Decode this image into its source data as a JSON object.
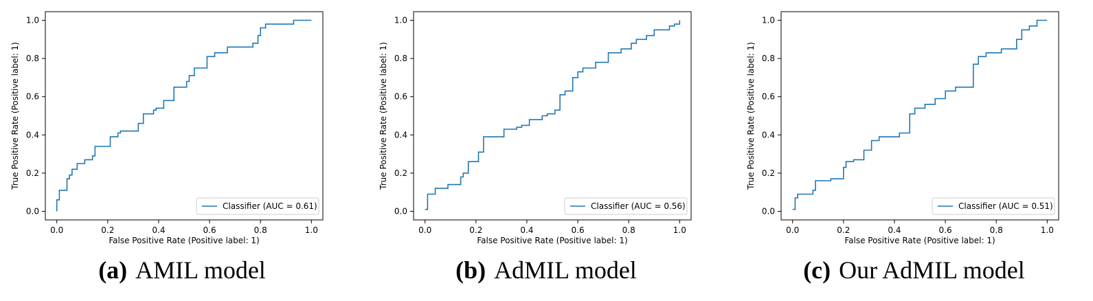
{
  "chart_data": [
    {
      "type": "line",
      "subtitle": "AMIL model",
      "panel_tag": "(a)",
      "xlabel": "False Positive Rate (Positive label: 1)",
      "ylabel": "True Positive Rate (Positive label: 1)",
      "xlim": [
        0.0,
        1.0
      ],
      "ylim": [
        0.0,
        1.0
      ],
      "xticks": [
        "0.0",
        "0.2",
        "0.4",
        "0.6",
        "0.8",
        "1.0"
      ],
      "yticks": [
        "0.0",
        "0.2",
        "0.4",
        "0.6",
        "0.8",
        "1.0"
      ],
      "grid": false,
      "legend_position": "lower-right",
      "series": [
        {
          "name": "Classifier (AUC = 0.61)",
          "color": "#1f77b4",
          "x": [
            0.0,
            0.0,
            0.01,
            0.01,
            0.04,
            0.04,
            0.05,
            0.05,
            0.06,
            0.06,
            0.08,
            0.08,
            0.11,
            0.11,
            0.14,
            0.14,
            0.15,
            0.15,
            0.21,
            0.21,
            0.24,
            0.24,
            0.25,
            0.25,
            0.32,
            0.32,
            0.34,
            0.34,
            0.38,
            0.38,
            0.39,
            0.39,
            0.42,
            0.42,
            0.46,
            0.46,
            0.51,
            0.51,
            0.52,
            0.52,
            0.54,
            0.54,
            0.59,
            0.59,
            0.62,
            0.62,
            0.67,
            0.67,
            0.77,
            0.77,
            0.79,
            0.79,
            0.8,
            0.8,
            0.82,
            0.82,
            0.93,
            0.93,
            0.99,
            0.99,
            1.0
          ],
          "y": [
            0.0,
            0.06,
            0.06,
            0.11,
            0.11,
            0.17,
            0.17,
            0.19,
            0.19,
            0.22,
            0.22,
            0.25,
            0.25,
            0.27,
            0.27,
            0.29,
            0.29,
            0.34,
            0.34,
            0.39,
            0.39,
            0.41,
            0.41,
            0.42,
            0.42,
            0.46,
            0.46,
            0.51,
            0.51,
            0.53,
            0.53,
            0.54,
            0.54,
            0.58,
            0.58,
            0.65,
            0.65,
            0.68,
            0.68,
            0.71,
            0.71,
            0.75,
            0.75,
            0.81,
            0.81,
            0.83,
            0.83,
            0.86,
            0.86,
            0.88,
            0.88,
            0.92,
            0.92,
            0.96,
            0.96,
            0.98,
            0.98,
            1.0,
            1.0,
            1.0,
            1.0
          ]
        }
      ]
    },
    {
      "type": "line",
      "subtitle": "AdMIL model",
      "panel_tag": "(b)",
      "xlabel": "False Positive Rate (Positive label: 1)",
      "ylabel": "True Positive Rate (Positive label: 1)",
      "xlim": [
        0.0,
        1.0
      ],
      "ylim": [
        0.0,
        1.0
      ],
      "xticks": [
        "0.0",
        "0.2",
        "0.4",
        "0.6",
        "0.8",
        "1.0"
      ],
      "yticks": [
        "0.0",
        "0.2",
        "0.4",
        "0.6",
        "0.8",
        "1.0"
      ],
      "grid": false,
      "legend_position": "lower-right",
      "series": [
        {
          "name": "Classifier (AUC = 0.56)",
          "color": "#1f77b4",
          "x": [
            0.0,
            0.01,
            0.01,
            0.04,
            0.04,
            0.09,
            0.09,
            0.14,
            0.14,
            0.15,
            0.15,
            0.17,
            0.17,
            0.21,
            0.21,
            0.23,
            0.23,
            0.31,
            0.31,
            0.36,
            0.36,
            0.38,
            0.38,
            0.41,
            0.41,
            0.46,
            0.46,
            0.48,
            0.48,
            0.51,
            0.51,
            0.53,
            0.53,
            0.55,
            0.55,
            0.58,
            0.58,
            0.6,
            0.6,
            0.62,
            0.62,
            0.67,
            0.67,
            0.72,
            0.72,
            0.77,
            0.77,
            0.81,
            0.81,
            0.83,
            0.83,
            0.87,
            0.87,
            0.9,
            0.9,
            0.96,
            0.96,
            0.98,
            0.98,
            1.0,
            1.0
          ],
          "y": [
            0.01,
            0.01,
            0.09,
            0.09,
            0.12,
            0.12,
            0.14,
            0.14,
            0.18,
            0.18,
            0.2,
            0.2,
            0.26,
            0.26,
            0.31,
            0.31,
            0.39,
            0.39,
            0.43,
            0.43,
            0.44,
            0.44,
            0.45,
            0.45,
            0.48,
            0.48,
            0.5,
            0.5,
            0.51,
            0.51,
            0.53,
            0.53,
            0.61,
            0.61,
            0.63,
            0.63,
            0.7,
            0.7,
            0.73,
            0.73,
            0.75,
            0.75,
            0.78,
            0.78,
            0.83,
            0.83,
            0.85,
            0.85,
            0.88,
            0.88,
            0.9,
            0.9,
            0.92,
            0.92,
            0.95,
            0.95,
            0.97,
            0.97,
            0.98,
            0.98,
            1.0
          ]
        }
      ]
    },
    {
      "type": "line",
      "subtitle": "Our AdMIL model",
      "panel_tag": "(c)",
      "xlabel": "False Positive Rate (Positive label: 1)",
      "ylabel": "True Positive Rate (Positive label: 1)",
      "xlim": [
        0.0,
        1.0
      ],
      "ylim": [
        0.0,
        1.0
      ],
      "xticks": [
        "0.0",
        "0.2",
        "0.4",
        "0.6",
        "0.8",
        "1.0"
      ],
      "yticks": [
        "0.0",
        "0.2",
        "0.4",
        "0.6",
        "0.8",
        "1.0"
      ],
      "grid": false,
      "legend_position": "lower-right",
      "series": [
        {
          "name": "Classifier (AUC = 0.51)",
          "color": "#1f77b4",
          "x": [
            0.0,
            0.01,
            0.01,
            0.02,
            0.02,
            0.08,
            0.08,
            0.09,
            0.09,
            0.15,
            0.15,
            0.2,
            0.2,
            0.21,
            0.21,
            0.24,
            0.24,
            0.28,
            0.28,
            0.31,
            0.31,
            0.34,
            0.34,
            0.42,
            0.42,
            0.46,
            0.46,
            0.48,
            0.48,
            0.52,
            0.52,
            0.56,
            0.56,
            0.6,
            0.6,
            0.64,
            0.64,
            0.71,
            0.71,
            0.73,
            0.73,
            0.76,
            0.76,
            0.82,
            0.82,
            0.88,
            0.88,
            0.9,
            0.9,
            0.93,
            0.93,
            0.96,
            0.96,
            1.0
          ],
          "y": [
            0.01,
            0.01,
            0.07,
            0.07,
            0.09,
            0.09,
            0.11,
            0.11,
            0.16,
            0.16,
            0.17,
            0.17,
            0.23,
            0.23,
            0.26,
            0.26,
            0.27,
            0.27,
            0.32,
            0.32,
            0.37,
            0.37,
            0.39,
            0.39,
            0.41,
            0.41,
            0.51,
            0.51,
            0.54,
            0.54,
            0.56,
            0.56,
            0.59,
            0.59,
            0.63,
            0.63,
            0.65,
            0.65,
            0.77,
            0.77,
            0.81,
            0.81,
            0.83,
            0.83,
            0.85,
            0.85,
            0.9,
            0.9,
            0.95,
            0.95,
            0.97,
            0.97,
            1.0,
            1.0
          ]
        }
      ]
    }
  ]
}
